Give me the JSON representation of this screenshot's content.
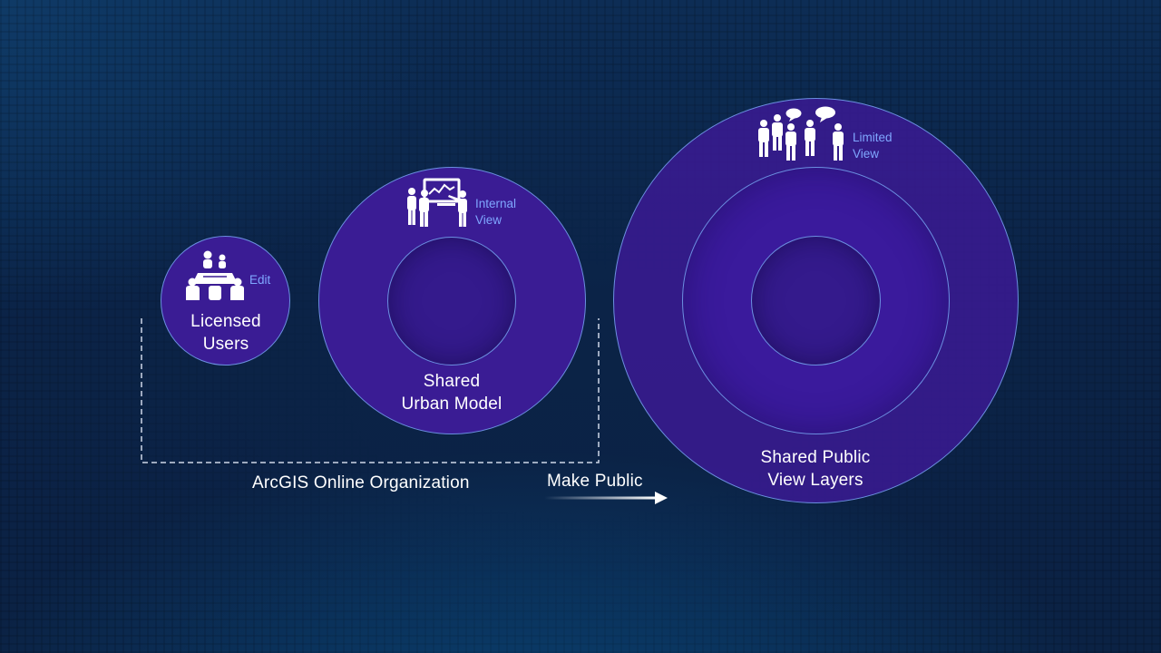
{
  "circles": {
    "licensed": {
      "title_line1": "Licensed",
      "title_line2": "Users",
      "access": "Edit",
      "icon": "meeting-table-icon"
    },
    "shared_model": {
      "title_line1": "Shared",
      "title_line2": "Urban Model",
      "access_line1": "Internal",
      "access_line2": "View",
      "icon": "presentation-group-icon"
    },
    "public": {
      "title_line1": "Shared Public",
      "title_line2": "View Layers",
      "access_line1": "Limited",
      "access_line2": "View",
      "icon": "crowd-chat-icon"
    }
  },
  "bracket": {
    "label": "ArcGIS Online Organization"
  },
  "arrow": {
    "label": "Make Public"
  },
  "colors": {
    "circle_fill": "#3a1c94",
    "circle_border": "#6b8fe0",
    "accent_text": "#7fa7ff",
    "background": "#0b2347"
  }
}
